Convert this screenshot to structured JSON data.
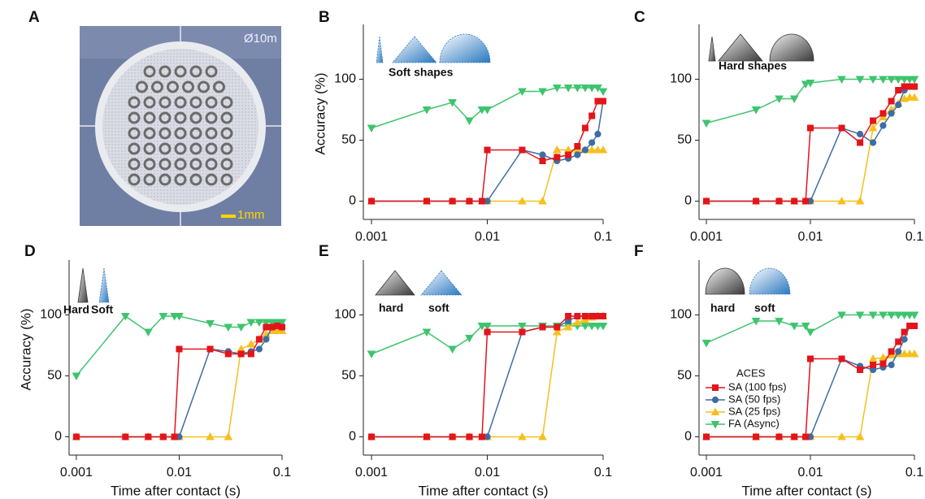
{
  "panel_a": {
    "label": "A",
    "scale_bar": "1mm",
    "stamp": "Ø10m"
  },
  "chart_data": [
    {
      "type": "line",
      "panel": "B",
      "ylabel": "Accuracy (%)",
      "log_x": true,
      "x": [
        0.001,
        0.003,
        0.005,
        0.007,
        0.009,
        0.01,
        0.02,
        0.03,
        0.04,
        0.05,
        0.06,
        0.07,
        0.08,
        0.09,
        0.1
      ],
      "xlim": [
        0.00085,
        0.1
      ],
      "xticks": [
        0.001,
        0.01,
        0.1
      ],
      "ylim": [
        -15,
        145
      ],
      "yticks": [
        0,
        50,
        100
      ],
      "annotations": [
        "Soft shapes"
      ],
      "series": [
        {
          "name": "SA (100 fps)",
          "color": "#e3141c",
          "marker": "square",
          "values": [
            0,
            0,
            0,
            0,
            0,
            42,
            42,
            33,
            36,
            38,
            45,
            60,
            70,
            82,
            82
          ]
        },
        {
          "name": "SA (50 fps)",
          "color": "#3d6da3",
          "marker": "circle",
          "values": [
            0,
            0,
            0,
            0,
            0,
            0,
            42,
            38,
            33,
            35,
            38,
            42,
            48,
            55,
            82
          ]
        },
        {
          "name": "SA (25 fps)",
          "color": "#f7bf1e",
          "marker": "triangle-up",
          "values": [
            0,
            0,
            0,
            0,
            0,
            0,
            0,
            0,
            42,
            42,
            42,
            42,
            42,
            42,
            42
          ]
        },
        {
          "name": "FA (Async)",
          "color": "#3ec46d",
          "marker": "triangle-down",
          "values": [
            60,
            75,
            81,
            66,
            75,
            75,
            90,
            90,
            93,
            93,
            93,
            93,
            93,
            93,
            90
          ]
        }
      ]
    },
    {
      "type": "line",
      "panel": "C",
      "log_x": true,
      "x": [
        0.001,
        0.003,
        0.005,
        0.007,
        0.009,
        0.01,
        0.02,
        0.03,
        0.04,
        0.05,
        0.06,
        0.07,
        0.08,
        0.09,
        0.1
      ],
      "xlim": [
        0.00085,
        0.1
      ],
      "xticks": [
        0.001,
        0.01,
        0.1
      ],
      "ylim": [
        -15,
        145
      ],
      "yticks": [
        0,
        50,
        100
      ],
      "annotations": [
        "Hard shapes"
      ],
      "series": [
        {
          "name": "SA (100 fps)",
          "color": "#e3141c",
          "marker": "square",
          "values": [
            0,
            0,
            0,
            0,
            0,
            60,
            60,
            48,
            66,
            72,
            82,
            91,
            94,
            94,
            94
          ]
        },
        {
          "name": "SA (50 fps)",
          "color": "#3d6da3",
          "marker": "circle",
          "values": [
            0,
            0,
            0,
            0,
            0,
            0,
            60,
            55,
            48,
            62,
            72,
            79,
            91,
            94,
            94
          ]
        },
        {
          "name": "SA (25 fps)",
          "color": "#f7bf1e",
          "marker": "triangle-up",
          "values": [
            0,
            0,
            0,
            0,
            0,
            0,
            0,
            0,
            60,
            69,
            75,
            80,
            84,
            85,
            85
          ]
        },
        {
          "name": "FA (Async)",
          "color": "#3ec46d",
          "marker": "triangle-down",
          "values": [
            64,
            75,
            84,
            84,
            96,
            97,
            100,
            100,
            100,
            100,
            100,
            100,
            100,
            100,
            100
          ]
        }
      ]
    },
    {
      "type": "line",
      "panel": "D",
      "ylabel": "Accuracy (%)",
      "xlabel": "Time after contact (s)",
      "log_x": true,
      "x": [
        0.001,
        0.003,
        0.005,
        0.007,
        0.009,
        0.01,
        0.02,
        0.03,
        0.04,
        0.05,
        0.06,
        0.07,
        0.08,
        0.09,
        0.1
      ],
      "xlim": [
        0.00085,
        0.1
      ],
      "xticks": [
        0.001,
        0.01,
        0.1
      ],
      "ylim": [
        -15,
        145
      ],
      "yticks": [
        0,
        50,
        100
      ],
      "annotations": [
        "Hard",
        "Soft"
      ],
      "series": [
        {
          "name": "SA (100 fps)",
          "color": "#e3141c",
          "marker": "square",
          "values": [
            0,
            0,
            0,
            0,
            0,
            72,
            72,
            68,
            68,
            68,
            80,
            90,
            90,
            91,
            90
          ]
        },
        {
          "name": "SA (50 fps)",
          "color": "#3d6da3",
          "marker": "circle",
          "values": [
            0,
            0,
            0,
            0,
            0,
            0,
            72,
            70,
            68,
            70,
            72,
            80,
            90,
            91,
            90
          ]
        },
        {
          "name": "SA (25 fps)",
          "color": "#f7bf1e",
          "marker": "triangle-up",
          "values": [
            0,
            0,
            0,
            0,
            0,
            0,
            0,
            0,
            72,
            76,
            80,
            84,
            87,
            87,
            87
          ]
        },
        {
          "name": "FA (Async)",
          "color": "#3ec46d",
          "marker": "triangle-down",
          "values": [
            50,
            99,
            86,
            99,
            99,
            99,
            93,
            90,
            90,
            94,
            94,
            94,
            94,
            94,
            94
          ]
        }
      ]
    },
    {
      "type": "line",
      "panel": "E",
      "xlabel": "Time after contact (s)",
      "log_x": true,
      "x": [
        0.001,
        0.003,
        0.005,
        0.007,
        0.009,
        0.01,
        0.02,
        0.03,
        0.04,
        0.05,
        0.06,
        0.07,
        0.08,
        0.09,
        0.1
      ],
      "xlim": [
        0.00085,
        0.1
      ],
      "xticks": [
        0.001,
        0.01,
        0.1
      ],
      "ylim": [
        -15,
        145
      ],
      "yticks": [
        0,
        50,
        100
      ],
      "annotations": [
        "hard",
        "soft"
      ],
      "series": [
        {
          "name": "SA (100 fps)",
          "color": "#e3141c",
          "marker": "square",
          "values": [
            0,
            0,
            0,
            0,
            0,
            86,
            86,
            90,
            90,
            99,
            99,
            99,
            99,
            99,
            99
          ]
        },
        {
          "name": "SA (50 fps)",
          "color": "#3d6da3",
          "marker": "circle",
          "values": [
            0,
            0,
            0,
            0,
            0,
            0,
            86,
            90,
            90,
            95,
            99,
            99,
            99,
            99,
            99
          ]
        },
        {
          "name": "SA (25 fps)",
          "color": "#f7bf1e",
          "marker": "triangle-up",
          "values": [
            0,
            0,
            0,
            0,
            0,
            0,
            0,
            0,
            86,
            90,
            94,
            96,
            98,
            99,
            99
          ]
        },
        {
          "name": "FA (Async)",
          "color": "#3ec46d",
          "marker": "triangle-down",
          "values": [
            68,
            86,
            72,
            81,
            91,
            91,
            91,
            91,
            91,
            91,
            91,
            91,
            91,
            91,
            91
          ]
        }
      ]
    },
    {
      "type": "line",
      "panel": "F",
      "xlabel": "Time after contact (s)",
      "log_x": true,
      "x": [
        0.001,
        0.003,
        0.005,
        0.007,
        0.009,
        0.01,
        0.02,
        0.03,
        0.04,
        0.05,
        0.06,
        0.07,
        0.08,
        0.09,
        0.1
      ],
      "xlim": [
        0.00085,
        0.1
      ],
      "xticks": [
        0.001,
        0.01,
        0.1
      ],
      "ylim": [
        -15,
        145
      ],
      "yticks": [
        0,
        50,
        100
      ],
      "annotations": [
        "hard",
        "soft"
      ],
      "legend": "lower left",
      "legend_title": "ACES",
      "series": [
        {
          "name": "SA (100 fps)",
          "color": "#e3141c",
          "marker": "square",
          "values": [
            0,
            0,
            0,
            0,
            0,
            64,
            64,
            55,
            59,
            60,
            70,
            78,
            86,
            91,
            91
          ]
        },
        {
          "name": "SA (50 fps)",
          "color": "#3d6da3",
          "marker": "circle",
          "values": [
            0,
            0,
            0,
            0,
            0,
            0,
            64,
            58,
            55,
            57,
            59,
            70,
            80,
            91,
            91
          ]
        },
        {
          "name": "SA (25 fps)",
          "color": "#f7bf1e",
          "marker": "triangle-up",
          "values": [
            0,
            0,
            0,
            0,
            0,
            0,
            0,
            0,
            64,
            65,
            67,
            68,
            68,
            68,
            68
          ]
        },
        {
          "name": "FA (Async)",
          "color": "#3ec46d",
          "marker": "triangle-down",
          "values": [
            77,
            95,
            95,
            91,
            91,
            86,
            100,
            100,
            100,
            100,
            100,
            100,
            100,
            100,
            100
          ]
        }
      ]
    }
  ]
}
